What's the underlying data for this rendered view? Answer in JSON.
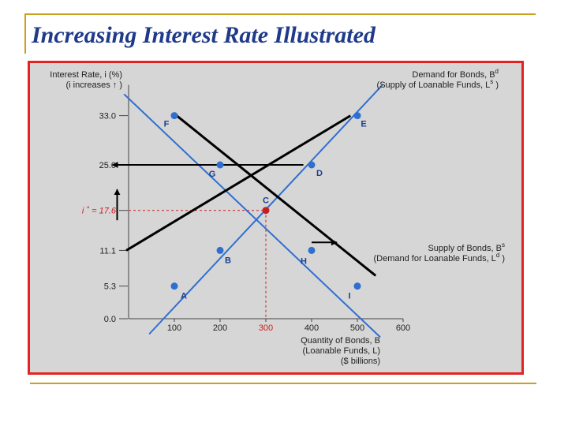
{
  "slide": {
    "title": "Increasing Interest Rate Illustrated"
  },
  "colors": {
    "title": "#1f3a8a",
    "frame_border": "#e32322",
    "figure_bg": "#d6d6d6",
    "curve": "#2f6fd0",
    "point": "#2f6fd0",
    "equilibrium": "#c81e1e",
    "arrow": "#000000",
    "axis": "#444444",
    "accent_rule": "#c8a11e"
  },
  "chart_data": {
    "type": "line",
    "title": "",
    "ylabel_lines": [
      "Interest Rate, i (%)",
      "(i increases ↑ )"
    ],
    "xlabel_lines": [
      "Quantity of Bonds, B",
      "(Loanable Funds, L)",
      "($ billions)"
    ],
    "xlim": [
      0,
      600
    ],
    "ylim": [
      0,
      38
    ],
    "x_ticks": [
      100,
      200,
      300,
      400,
      500,
      600
    ],
    "x_tick_labels": [
      "100",
      "200",
      "300",
      "400",
      "500",
      "600"
    ],
    "y_ticks": [
      0,
      5.3,
      11.1,
      17.6,
      25.0,
      33.0
    ],
    "y_tick_labels": [
      "0.0",
      "5.3",
      "11.1",
      "i ˚ = 17.6",
      "25.0",
      "33.0"
    ],
    "grid": false,
    "series": [
      {
        "name": "Demand for Bonds, B^d (Supply of Loanable Funds, L^s)",
        "label_lines": [
          "Demand for Bonds, B",
          "(Supply of Loanable Funds, L )"
        ],
        "label_superscripts": [
          "d",
          "s"
        ],
        "line": [
          [
            -10,
            36.5
          ],
          [
            550,
            -3
          ]
        ],
        "points": [
          {
            "label": "F",
            "x": 100,
            "y": 33.0
          },
          {
            "label": "G",
            "x": 200,
            "y": 25.0
          },
          {
            "label": "C",
            "x": 300,
            "y": 17.6
          },
          {
            "label": "B",
            "x": 200,
            "y": 11.1
          },
          {
            "label": "A",
            "x": 100,
            "y": 5.3
          }
        ]
      },
      {
        "name": "Supply of Bonds, B^s (Demand for Loanable Funds, L^d)",
        "label_lines": [
          "Supply of Bonds, B",
          "(Demand for Loanable Funds, L )"
        ],
        "label_superscripts": [
          "s",
          "d"
        ],
        "line": [
          [
            45,
            -2.5
          ],
          [
            555,
            38
          ]
        ],
        "points": [
          {
            "label": "E",
            "x": 500,
            "y": 33.0
          },
          {
            "label": "D",
            "x": 400,
            "y": 25.0
          },
          {
            "label": "H",
            "x": 400,
            "y": 11.1
          },
          {
            "label": "I",
            "x": 500,
            "y": 5.3
          }
        ]
      }
    ],
    "equilibrium": {
      "label": "C",
      "x": 300,
      "y": 17.6
    },
    "overlay_lines": [
      {
        "from": [
          -5,
          11.1
        ],
        "to": [
          485,
          33.0
        ]
      },
      {
        "from": [
          105,
          33.0
        ],
        "to": [
          540,
          7.0
        ]
      }
    ],
    "overlay_arrows": [
      {
        "from": [
          382,
          25.0
        ],
        "to": [
          -35,
          25.0
        ]
      },
      {
        "from": [
          -25,
          16.0
        ],
        "to": [
          -25,
          21.0
        ]
      },
      {
        "from": [
          400,
          12.4
        ],
        "to": [
          455,
          12.4
        ]
      }
    ]
  }
}
